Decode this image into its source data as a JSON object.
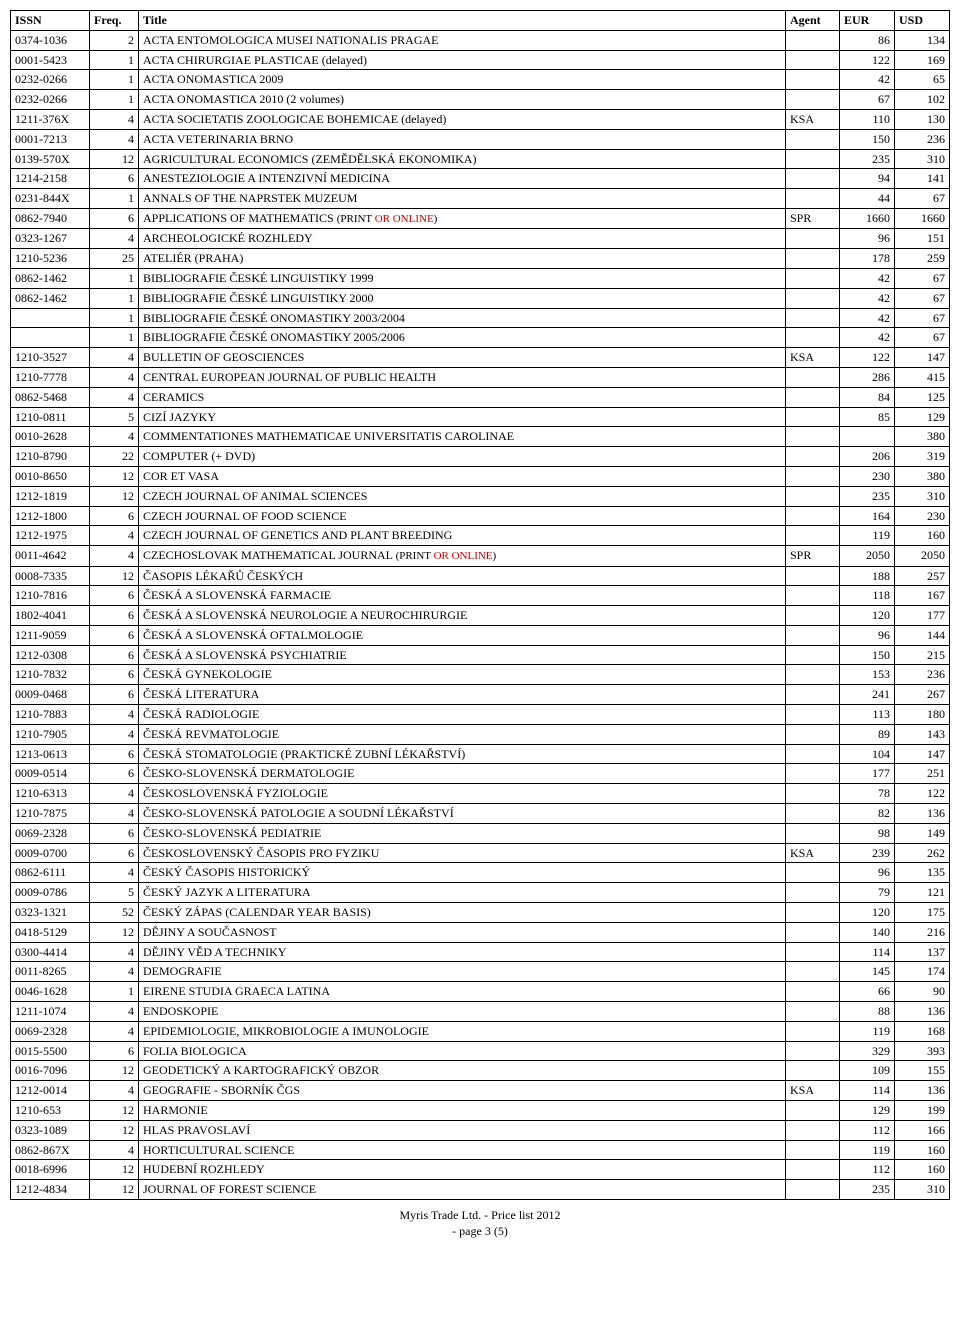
{
  "headers": {
    "issn": "ISSN",
    "freq": "Freq.",
    "title": "Title",
    "agent": "Agent",
    "eur": "EUR",
    "usd": "USD"
  },
  "rows": [
    {
      "issn": "0374-1036",
      "freq": "2",
      "title": "ACTA ENTOMOLOGICA MUSEI NATIONALIS PRAGAE",
      "agent": "",
      "eur": "86",
      "usd": "134"
    },
    {
      "issn": "0001-5423",
      "freq": "1",
      "title": "ACTA CHIRURGIAE PLASTICAE (delayed)",
      "agent": "",
      "eur": "122",
      "usd": "169"
    },
    {
      "issn": "0232-0266",
      "freq": "1",
      "title": "ACTA ONOMASTICA 2009",
      "agent": "",
      "eur": "42",
      "usd": "65"
    },
    {
      "issn": "0232-0266",
      "freq": "1",
      "title": "ACTA ONOMASTICA 2010 (2 volumes)",
      "agent": "",
      "eur": "67",
      "usd": "102"
    },
    {
      "issn": "1211-376X",
      "freq": "4",
      "title": "ACTA SOCIETATIS ZOOLOGICAE BOHEMICAE (delayed)",
      "agent": "KSA",
      "eur": "110",
      "usd": "130"
    },
    {
      "issn": "0001-7213",
      "freq": "4",
      "title": "ACTA VETERINARIA BRNO",
      "agent": "",
      "eur": "150",
      "usd": "236"
    },
    {
      "issn": "0139-570X",
      "freq": "12",
      "title": "AGRICULTURAL ECONOMICS  (ZEMĚDĚLSKÁ EKONOMIKA)",
      "agent": "",
      "eur": "235",
      "usd": "310"
    },
    {
      "issn": "1214-2158",
      "freq": "6",
      "title": "ANESTEZIOLOGIE A INTENZIVNÍ MEDICINA",
      "agent": "",
      "eur": "94",
      "usd": "141"
    },
    {
      "issn": "0231-844X",
      "freq": "1",
      "title": "ANNALS OF THE NAPRSTEK MUZEUM",
      "agent": "",
      "eur": "44",
      "usd": "67"
    },
    {
      "issn": "0862-7940",
      "freq": "6",
      "title_pre": "APPLICATIONS OF MATHEMATICS  ",
      "title_small_pre": "(PRINT ",
      "title_red": "OR ONLINE",
      "title_small_post": ")",
      "agent": "SPR",
      "eur": "1660",
      "usd": "1660"
    },
    {
      "issn": "0323-1267",
      "freq": "4",
      "title": "ARCHEOLOGICKÉ ROZHLEDY",
      "agent": "",
      "eur": "96",
      "usd": "151"
    },
    {
      "issn": "1210-5236",
      "freq": "25",
      "title": "ATELIÉR  (PRAHA)",
      "agent": "",
      "eur": "178",
      "usd": "259"
    },
    {
      "issn": "0862-1462",
      "freq": "1",
      "title": "BIBLIOGRAFIE ČESKÉ LINGUISTIKY 1999",
      "agent": "",
      "eur": "42",
      "usd": "67"
    },
    {
      "issn": "0862-1462",
      "freq": "1",
      "title": "BIBLIOGRAFIE ČESKÉ LINGUISTIKY 2000",
      "agent": "",
      "eur": "42",
      "usd": "67"
    },
    {
      "issn": "",
      "freq": "1",
      "title": "BIBLIOGRAFIE ČESKÉ ONOMASTIKY 2003/2004",
      "agent": "",
      "eur": "42",
      "usd": "67"
    },
    {
      "issn": "",
      "freq": "1",
      "title": "BIBLIOGRAFIE ČESKÉ ONOMASTIKY 2005/2006",
      "agent": "",
      "eur": "42",
      "usd": "67"
    },
    {
      "issn": "1210-3527",
      "freq": "4",
      "title": "BULLETIN OF GEOSCIENCES",
      "agent": "KSA",
      "eur": "122",
      "usd": "147"
    },
    {
      "issn": "1210-7778",
      "freq": "4",
      "title": "CENTRAL EUROPEAN JOURNAL OF PUBLIC HEALTH",
      "agent": "",
      "eur": "286",
      "usd": "415"
    },
    {
      "issn": "0862-5468",
      "freq": "4",
      "title": "CERAMICS",
      "agent": "",
      "eur": "84",
      "usd": "125"
    },
    {
      "issn": "1210-0811",
      "freq": "5",
      "title": "CIZÍ JAZYKY",
      "agent": "",
      "eur": "85",
      "usd": "129"
    },
    {
      "issn": "0010-2628",
      "freq": "4",
      "title": "COMMENTATIONES MATHEMATICAE UNIVERSITATIS CAROLINAE",
      "agent": "",
      "eur": "",
      "usd": "380"
    },
    {
      "issn": "1210-8790",
      "freq": "22",
      "title": "COMPUTER (+ DVD)",
      "agent": "",
      "eur": "206",
      "usd": "319"
    },
    {
      "issn": "0010-8650",
      "freq": "12",
      "title": "COR ET VASA",
      "agent": "",
      "eur": "230",
      "usd": "380"
    },
    {
      "issn": "1212-1819",
      "freq": "12",
      "title": "CZECH JOURNAL OF ANIMAL SCIENCES",
      "agent": "",
      "eur": "235",
      "usd": "310"
    },
    {
      "issn": "1212-1800",
      "freq": "6",
      "title": "CZECH JOURNAL OF FOOD SCIENCE",
      "agent": "",
      "eur": "164",
      "usd": "230"
    },
    {
      "issn": "1212-1975",
      "freq": "4",
      "title": "CZECH JOURNAL OF GENETICS AND PLANT BREEDING",
      "agent": "",
      "eur": "119",
      "usd": "160"
    },
    {
      "issn": "0011-4642",
      "freq": "4",
      "title_pre": "CZECHOSLOVAK MATHEMATICAL JOURNAL     ",
      "title_small_pre": "(PRINT ",
      "title_red": "OR ONLINE",
      "title_small_post": ")",
      "agent": "SPR",
      "eur": "2050",
      "usd": "2050"
    },
    {
      "issn": "0008-7335",
      "freq": "12",
      "title": "ČASOPIS LÉKAŘŮ ČESKÝCH",
      "agent": "",
      "eur": "188",
      "usd": "257"
    },
    {
      "issn": "1210-7816",
      "freq": "6",
      "title": "ČESKÁ A SLOVENSKÁ FARMACIE",
      "agent": "",
      "eur": "118",
      "usd": "167"
    },
    {
      "issn": "1802-4041",
      "freq": "6",
      "title": "ČESKÁ A SLOVENSKÁ NEUROLOGIE A NEUROCHIRURGIE",
      "agent": "",
      "eur": "120",
      "usd": "177"
    },
    {
      "issn": "1211-9059",
      "freq": "6",
      "title": "ČESKÁ A SLOVENSKÁ OFTALMOLOGIE",
      "agent": "",
      "eur": "96",
      "usd": "144"
    },
    {
      "issn": "1212-0308",
      "freq": "6",
      "title": "ČESKÁ A SLOVENSKÁ PSYCHIATRIE",
      "agent": "",
      "eur": "150",
      "usd": "215"
    },
    {
      "issn": "1210-7832",
      "freq": "6",
      "title": "ČESKÁ GYNEKOLOGIE",
      "agent": "",
      "eur": "153",
      "usd": "236"
    },
    {
      "issn": "0009-0468",
      "freq": "6",
      "title": "ČESKÁ LITERATURA",
      "agent": "",
      "eur": "241",
      "usd": "267"
    },
    {
      "issn": "1210-7883",
      "freq": "4",
      "title": "ČESKÁ RADIOLOGIE",
      "agent": "",
      "eur": "113",
      "usd": "180"
    },
    {
      "issn": "1210-7905",
      "freq": "4",
      "title": "ČESKÁ REVMATOLOGIE",
      "agent": "",
      "eur": "89",
      "usd": "143"
    },
    {
      "issn": "1213-0613",
      "freq": "6",
      "title": "ČESKÁ STOMATOLOGIE (PRAKTICKÉ ZUBNÍ LÉKAŘSTVÍ)",
      "agent": "",
      "eur": "104",
      "usd": "147"
    },
    {
      "issn": "0009-0514",
      "freq": "6",
      "title": "ČESKO-SLOVENSKÁ DERMATOLOGIE",
      "agent": "",
      "eur": "177",
      "usd": "251"
    },
    {
      "issn": "1210-6313",
      "freq": "4",
      "title": "ČESKOSLOVENSKÁ FYZIOLOGIE",
      "agent": "",
      "eur": "78",
      "usd": "122"
    },
    {
      "issn": "1210-7875",
      "freq": "4",
      "title": "ČESKO-SLOVENSKÁ PATOLOGIE A SOUDNÍ LÉKAŘSTVÍ",
      "agent": "",
      "eur": "82",
      "usd": "136"
    },
    {
      "issn": "0069-2328",
      "freq": "6",
      "title": "ČESKO-SLOVENSKÁ PEDIATRIE",
      "agent": "",
      "eur": "98",
      "usd": "149"
    },
    {
      "issn": "0009-0700",
      "freq": "6",
      "title": "ČESKOSLOVENSKÝ ČASOPIS PRO FYZIKU",
      "agent": "KSA",
      "eur": "239",
      "usd": "262"
    },
    {
      "issn": "0862-6111",
      "freq": "4",
      "title": "ČESKÝ ČASOPIS HISTORICKÝ",
      "agent": "",
      "eur": "96",
      "usd": "135"
    },
    {
      "issn": "0009-0786",
      "freq": "5",
      "title": "ČESKÝ JAZYK A LITERATURA",
      "agent": "",
      "eur": "79",
      "usd": "121"
    },
    {
      "issn": "0323-1321",
      "freq": "52",
      "title": "ČESKÝ ZÁPAS (CALENDAR YEAR BASIS)",
      "agent": "",
      "eur": "120",
      "usd": "175"
    },
    {
      "issn": "0418-5129",
      "freq": "12",
      "title": "DĚJINY A SOUČASNOST",
      "agent": "",
      "eur": "140",
      "usd": "216"
    },
    {
      "issn": "0300-4414",
      "freq": "4",
      "title": "DĚJINY VĚD A TECHNIKY",
      "agent": "",
      "eur": "114",
      "usd": "137"
    },
    {
      "issn": "0011-8265",
      "freq": "4",
      "title": "DEMOGRAFIE",
      "agent": "",
      "eur": "145",
      "usd": "174"
    },
    {
      "issn": "0046-1628",
      "freq": "1",
      "title": "EIRENE STUDIA GRAECA LATINA",
      "agent": "",
      "eur": "66",
      "usd": "90"
    },
    {
      "issn": "1211-1074",
      "freq": "4",
      "title": "ENDOSKOPIE",
      "agent": "",
      "eur": "88",
      "usd": "136"
    },
    {
      "issn": "0069-2328",
      "freq": "4",
      "title": "EPIDEMIOLOGIE, MIKROBIOLOGIE A IMUNOLOGIE",
      "agent": "",
      "eur": "119",
      "usd": "168"
    },
    {
      "issn": "0015-5500",
      "freq": "6",
      "title": "FOLIA BIOLOGICA",
      "agent": "",
      "eur": "329",
      "usd": "393"
    },
    {
      "issn": "0016-7096",
      "freq": "12",
      "title": "GEODETICKÝ A KARTOGRAFICKÝ OBZOR",
      "agent": "",
      "eur": "109",
      "usd": "155"
    },
    {
      "issn": "1212-0014",
      "freq": "4",
      "title": "GEOGRAFIE - SBORNÍK ČGS",
      "agent": "KSA",
      "eur": "114",
      "usd": "136"
    },
    {
      "issn": "1210-653",
      "freq": "12",
      "title": "HARMONIE",
      "agent": "",
      "eur": "129",
      "usd": "199"
    },
    {
      "issn": "0323-1089",
      "freq": "12",
      "title": "HLAS PRAVOSLAVÍ",
      "agent": "",
      "eur": "112",
      "usd": "166"
    },
    {
      "issn": "0862-867X",
      "freq": "4",
      "title": "HORTICULTURAL SCIENCE",
      "agent": "",
      "eur": "119",
      "usd": "160"
    },
    {
      "issn": "0018-6996",
      "freq": "12",
      "title": "HUDEBNÍ ROZHLEDY",
      "agent": "",
      "eur": "112",
      "usd": "160"
    },
    {
      "issn": "1212-4834",
      "freq": "12",
      "title": "JOURNAL OF FOREST SCIENCE",
      "agent": "",
      "eur": "235",
      "usd": "310"
    }
  ],
  "footer": {
    "line1": "Myris Trade Ltd. - Price list 2012",
    "line2": "- page 3 (5)"
  }
}
